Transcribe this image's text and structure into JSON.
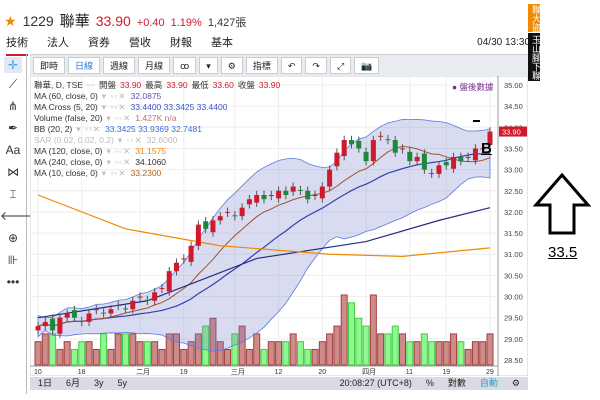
{
  "header": {
    "code": "1229",
    "name": "聯華",
    "price": "33.90",
    "change": "+0.40",
    "change_pct": "1.19%",
    "volume": "1,427張",
    "datetime": "04/30 13:30"
  },
  "tabs": [
    "技術",
    "法人",
    "資券",
    "營收",
    "財報",
    "基本"
  ],
  "badges": [
    "聯大盜",
    "玉山腳下聯"
  ],
  "toolbar": [
    "即時",
    "日線",
    "週線",
    "月線",
    "ꝏ",
    "▾",
    "⚙",
    "指標",
    "↶",
    "↷",
    "⤢",
    "📷"
  ],
  "sidebar": [
    "✛",
    "⟋",
    "⋔",
    "✒",
    "Aa",
    "⋈",
    "⌶",
    "🡐",
    "⊕",
    "⊪",
    "•••"
  ],
  "legend": {
    "main": {
      "label": "聯華, D, TSE",
      "open_l": "開盤",
      "open": "33.90",
      "high_l": "最高",
      "high": "33.90",
      "low_l": "最低",
      "low": "33.60",
      "close_l": "收盤",
      "close": "33.90"
    },
    "rows": [
      {
        "label": "MA (60, close, 0)",
        "values": "32.0875",
        "color": "#6a4fb5"
      },
      {
        "label": "MA Cross (5, 20)",
        "values": "33.4400 33.3425 33.4400",
        "color": "#3a55c8"
      },
      {
        "label": "Volume (false, 20)",
        "values": "1.427K n/a",
        "color": "#c07070"
      },
      {
        "label": "BB (20, 2)",
        "values": "33.3425 33.9369 32.7481",
        "color": "#3a6fd8"
      },
      {
        "label": "SAR (0.02, 0.02, 0.2)",
        "values": "32.6000",
        "color": "#bbb"
      },
      {
        "label": "MA (120, close, 0)",
        "values": "31.1575",
        "color": "#f08a00"
      },
      {
        "label": "MA (240, close, 0)",
        "values": "34.1060",
        "color": "#333"
      },
      {
        "label": "MA (10, close, 0)",
        "values": "33.2300",
        "color": "#b5651d"
      }
    ]
  },
  "after_hours": "● 盤後數據",
  "bottom": {
    "ranges": [
      "1日",
      "6月",
      "3y",
      "5y"
    ],
    "clock": "20:08:27 (UTC+8)",
    "pct": "%",
    "log": "對數",
    "auto": "自動",
    "gear": "⚙"
  },
  "annotations": {
    "b_label": "B",
    "target": "33.5"
  },
  "chart_data": {
    "type": "candlestick",
    "ylim": [
      28.5,
      35.0
    ],
    "yticks": [
      "35.00",
      "34.50",
      "34.00",
      "33.50",
      "33.00",
      "32.50",
      "32.00",
      "31.50",
      "31.00",
      "30.50",
      "30.00",
      "29.50",
      "29.00",
      "28.50"
    ],
    "last_price_label": "33.90",
    "xticks": [
      {
        "i": 0,
        "t": "10"
      },
      {
        "i": 6,
        "t": "18"
      },
      {
        "i": 14,
        "t": "二月"
      },
      {
        "i": 20,
        "t": "19"
      },
      {
        "i": 27,
        "t": "三月"
      },
      {
        "i": 33,
        "t": "12"
      },
      {
        "i": 39,
        "t": "20"
      },
      {
        "i": 45,
        "t": "四月"
      },
      {
        "i": 51,
        "t": "11"
      },
      {
        "i": 56,
        "t": "19"
      },
      {
        "i": 62,
        "t": "29"
      }
    ],
    "closes": [
      29.3,
      29.4,
      29.2,
      29.5,
      29.6,
      29.5,
      29.4,
      29.6,
      29.7,
      29.6,
      29.7,
      29.8,
      29.7,
      29.9,
      30.0,
      29.9,
      30.1,
      30.2,
      30.6,
      30.8,
      30.9,
      31.2,
      31.7,
      31.6,
      31.8,
      31.9,
      32.0,
      31.9,
      32.1,
      32.3,
      32.4,
      32.3,
      32.4,
      32.5,
      32.4,
      32.6,
      32.5,
      32.3,
      32.4,
      32.6,
      33.0,
      33.4,
      33.7,
      33.6,
      33.5,
      33.2,
      33.7,
      33.8,
      33.7,
      33.4,
      33.5,
      33.2,
      33.3,
      33.0,
      32.9,
      33.1,
      33.1,
      33.3,
      33.2,
      33.3,
      33.5,
      33.5,
      33.9
    ],
    "volumes": [
      3,
      4,
      4,
      2,
      3,
      2,
      3,
      3,
      2,
      4,
      2,
      4,
      4,
      4,
      3,
      3,
      3,
      2,
      4,
      4,
      2,
      3,
      4,
      5,
      6,
      3,
      2,
      4,
      5,
      2,
      4,
      2,
      3,
      3,
      3,
      4,
      3,
      2,
      2,
      3,
      4,
      5,
      9,
      8,
      6,
      5,
      9,
      4,
      4,
      5,
      4,
      3,
      3,
      4,
      3,
      3,
      3,
      4,
      3,
      2,
      3,
      3,
      4
    ],
    "ma60": [
      [
        0,
        29.5
      ],
      [
        15,
        29.9
      ],
      [
        30,
        30.9
      ],
      [
        45,
        31.3
      ],
      [
        55,
        31.8
      ],
      [
        62,
        32.1
      ]
    ],
    "ma120": [
      [
        0,
        32.4
      ],
      [
        12,
        31.6
      ],
      [
        25,
        31.2
      ],
      [
        40,
        31.0
      ],
      [
        50,
        30.95
      ],
      [
        62,
        31.15
      ]
    ]
  }
}
